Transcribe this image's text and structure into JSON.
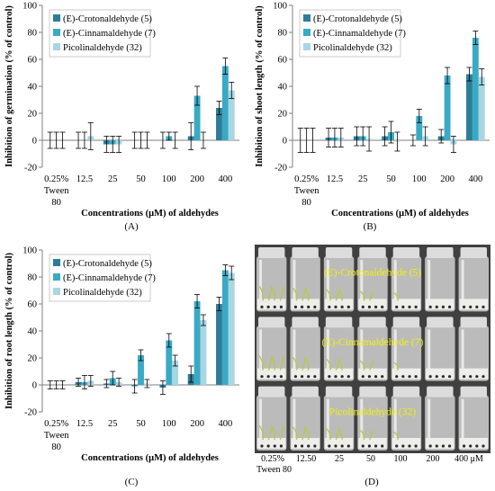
{
  "colors": {
    "crotonaldehyde": "#2e7d96",
    "cinnamaldehyde": "#3aaac4",
    "picolinaldehyde": "#a8d6e3",
    "axis": "#7f7f7f"
  },
  "panels": [
    {
      "letter": "(A)",
      "ylabel": "Inhibition of germination (% of control)",
      "xlabel": "Concentrations (μM) of aldehydes"
    },
    {
      "letter": "(B)",
      "ylabel": "Inhibition of shoot length (% of control)",
      "xlabel": "Concentrations (μM) of aldehydes"
    },
    {
      "letter": "(C)",
      "ylabel": "Inhibition of root length (% of control)",
      "xlabel": "Concentrations (μM) of aldehydes"
    },
    {
      "letter": "(D)",
      "photo_labels": [
        "(E)-Crotonaldehyde (5)",
        "(E)-Cinnamaldehyde (7)",
        "Picolinaldehyde (32)"
      ],
      "photo_italic_prefix": "E",
      "concentrations": [
        "0.25%",
        "12.50",
        "25",
        "50",
        "100",
        "200",
        "400 μM"
      ],
      "tween_label": "Tween 80"
    }
  ],
  "chart_data": [
    {
      "type": "bar",
      "categories": [
        "0.25% Tween 80",
        "12.5",
        "25",
        "50",
        "100",
        "200",
        "400"
      ],
      "category_lines": [
        [
          "0.25%",
          "Tween",
          "80"
        ],
        [
          "12.5"
        ],
        [
          "25"
        ],
        [
          "50"
        ],
        [
          "100"
        ],
        [
          "200"
        ],
        [
          "400"
        ]
      ],
      "series": [
        {
          "name": "(E)-Crotonaldehyde (5)",
          "values": [
            0,
            0,
            -3,
            0,
            0,
            3,
            24
          ],
          "errors": [
            6,
            6,
            6,
            6,
            6,
            10,
            5
          ]
        },
        {
          "name": "(E)-Cinnamaldehyde (7)",
          "values": [
            0,
            0,
            -3,
            0,
            3,
            33,
            55
          ],
          "errors": [
            6,
            6,
            6,
            6,
            3,
            7,
            6
          ]
        },
        {
          "name": "Picolinaldehyde (32)",
          "values": [
            0,
            3,
            -3,
            0,
            0,
            0,
            37
          ],
          "errors": [
            6,
            10,
            6,
            6,
            6,
            6,
            6
          ]
        }
      ],
      "xlabel": "Concentrations (μM) of aldehydes",
      "ylabel": "Inhibition of germination (% of control)",
      "ylim": [
        -20,
        100
      ],
      "yticks": [
        -20,
        0,
        20,
        40,
        60,
        80,
        100
      ],
      "grid": false,
      "legend": "top-left"
    },
    {
      "type": "bar",
      "categories": [
        "0.25% Tween 80",
        "12.5",
        "25",
        "50",
        "100",
        "200",
        "400"
      ],
      "category_lines": [
        [
          "0.25%",
          "Tween",
          "80"
        ],
        [
          "12.5"
        ],
        [
          "25"
        ],
        [
          "50"
        ],
        [
          "100"
        ],
        [
          "200"
        ],
        [
          "400"
        ]
      ],
      "series": [
        {
          "name": "(E)-Crotonaldehyde (5)",
          "values": [
            0,
            2,
            3,
            3,
            0,
            3,
            49
          ],
          "errors": [
            9,
            7,
            7,
            7,
            4,
            5,
            5
          ]
        },
        {
          "name": "(E)-Cinnamaldehyde (7)",
          "values": [
            0,
            2,
            3,
            6,
            18,
            48,
            76
          ],
          "errors": [
            9,
            7,
            7,
            8,
            5,
            6,
            5
          ]
        },
        {
          "name": "Picolinaldehyde (32)",
          "values": [
            0,
            2,
            1,
            -1,
            3,
            -3,
            47
          ],
          "errors": [
            9,
            7,
            9,
            7,
            7,
            6,
            6
          ]
        }
      ],
      "xlabel": "Concentrations (μM) of aldehydes",
      "ylabel": "Inhibition of shoot length (% of control)",
      "ylim": [
        -20,
        100
      ],
      "yticks": [
        -20,
        0,
        20,
        40,
        60,
        80,
        100
      ],
      "grid": false,
      "legend": "top-left"
    },
    {
      "type": "bar",
      "categories": [
        "0.25% Tween 80",
        "12.5",
        "25",
        "50",
        "100",
        "200",
        "400"
      ],
      "category_lines": [
        [
          "0.25%",
          "Tween",
          "80"
        ],
        [
          "12.5"
        ],
        [
          "25"
        ],
        [
          "50"
        ],
        [
          "100"
        ],
        [
          "200"
        ],
        [
          "400"
        ]
      ],
      "series": [
        {
          "name": "(E)-Crotonaldehyde (5)",
          "values": [
            0,
            2,
            1,
            -1,
            -2,
            8,
            60
          ],
          "errors": [
            3,
            3,
            3,
            5,
            5,
            6,
            5
          ]
        },
        {
          "name": "(E)-Cinnamaldehyde (7)",
          "values": [
            0,
            2,
            5,
            22,
            33,
            62,
            85
          ],
          "errors": [
            3,
            5,
            5,
            4,
            5,
            5,
            4
          ]
        },
        {
          "name": "Picolinaldehyde (32)",
          "values": [
            0,
            3,
            2,
            1,
            18,
            48,
            83
          ],
          "errors": [
            3,
            4,
            3,
            3,
            4,
            4,
            5
          ]
        }
      ],
      "xlabel": "Concentrations (μM) of aldehydes",
      "ylabel": "Inhibition of root length (% of control)",
      "ylim": [
        -20,
        100
      ],
      "yticks": [
        -20,
        0,
        20,
        40,
        60,
        80,
        100
      ],
      "grid": false,
      "legend": "top-left"
    }
  ]
}
